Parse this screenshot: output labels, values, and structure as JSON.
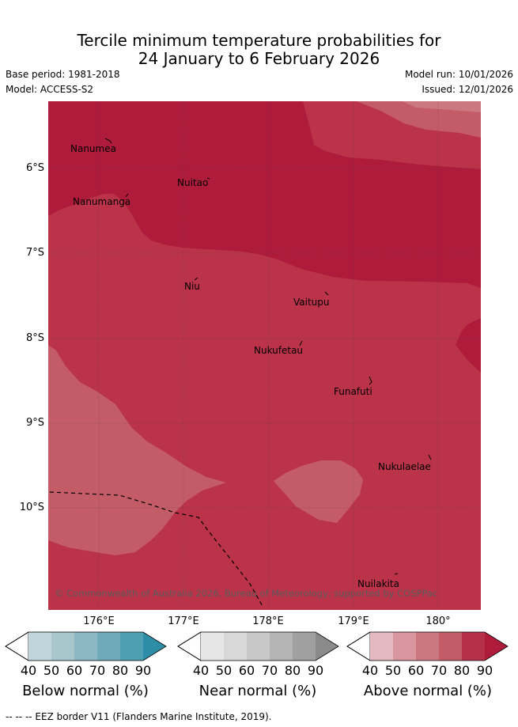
{
  "title": {
    "line1": "Tercile minimum temperature probabilities for",
    "line2": "24 January to 6 February 2026"
  },
  "meta": {
    "base_period": "Base period: 1981-2018",
    "model": "Model: ACCESS-S2",
    "model_run": "Model run: 10/01/2026",
    "issued": "Issued: 12/01/2026"
  },
  "map": {
    "attribution": "© Commonwealth of Australia 2026, Bureau of Meteorology, supported by COSPPac",
    "latitudes": [
      "6°S",
      "7°S",
      "8°S",
      "9°S",
      "10°S"
    ],
    "longitudes": [
      "176°E",
      "177°E",
      "178°E",
      "179°E",
      "180°"
    ],
    "places": [
      {
        "name": "Nanumea"
      },
      {
        "name": "Nuitao"
      },
      {
        "name": "Nanumanga"
      },
      {
        "name": "Niu"
      },
      {
        "name": "Vaitupu"
      },
      {
        "name": "Nukufetau"
      },
      {
        "name": "Funafuti"
      },
      {
        "name": "Nukulaelae"
      },
      {
        "name": "Nuilakita"
      }
    ]
  },
  "colorbars": {
    "ticks": [
      "40",
      "50",
      "60",
      "70",
      "80",
      "90"
    ],
    "below": {
      "label": "Below normal (%)",
      "colors": [
        "#c0d6dc",
        "#a7c7cd",
        "#8bb8c3",
        "#6eaab9",
        "#4e9fb1",
        "#2d8da6"
      ]
    },
    "near": {
      "label": "Near normal (%)",
      "colors": [
        "#e6e6e6",
        "#d8d8d8",
        "#c8c8c8",
        "#b4b4b4",
        "#a0a0a0",
        "#8a8a8a"
      ]
    },
    "above": {
      "label": "Above normal (%)",
      "colors": [
        "#e3b8c0",
        "#d9969f",
        "#cc7880",
        "#c45c68",
        "#b7304a",
        "#af1c3b"
      ]
    }
  },
  "footnote": "-- -- -- EEZ border V11 (Flanders Marine Institute, 2019)."
}
